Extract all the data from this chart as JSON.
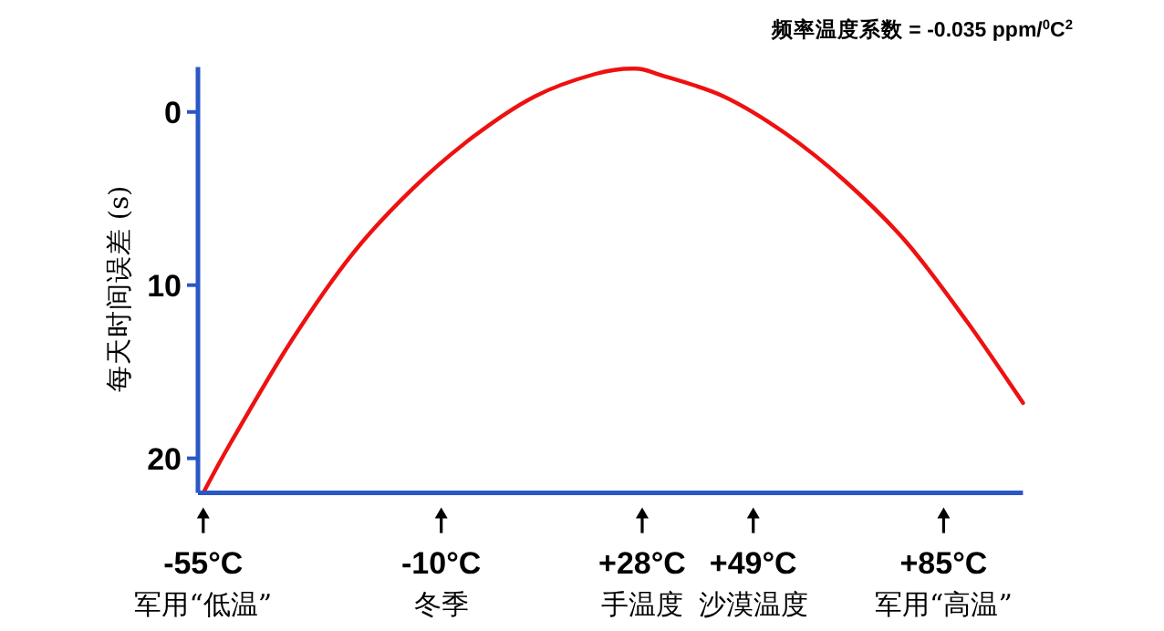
{
  "chart_data": {
    "type": "line",
    "title": "频率温度系数 = -0.035 ppm/$^{0}$C$^{2}$",
    "ylabel": "每天时间误差 (s)",
    "xlim": [
      -56,
      100
    ],
    "ylim": [
      22,
      -2.6
    ],
    "yticks": [
      0,
      10,
      20
    ],
    "xticks": [
      {
        "value": -55,
        "label": "-55°C"
      },
      {
        "value": -10,
        "label": "-10°C"
      },
      {
        "value": 28,
        "label": "+28°C"
      },
      {
        "value": 49,
        "label": "+49°C"
      },
      {
        "value": 85,
        "label": "+85°C"
      }
    ],
    "annotations": [
      "军用“低温”",
      "冬季",
      "手温度",
      "沙漠温度",
      "军用“高温”"
    ],
    "series": [
      {
        "color": "#ee1111",
        "x": [
          -55,
          -49.8,
          -38.3,
          -26.8,
          -15.3,
          -3.8,
          7.7,
          19.2,
          26.7,
          31.8,
          43.4,
          54.9,
          66.4,
          77.9,
          89.4,
          100
        ],
        "values": [
          22,
          19.1,
          13.2,
          8.2,
          4.4,
          1.4,
          -0.9,
          -2.2,
          -2.5,
          -2.1,
          -0.9,
          1.2,
          4.0,
          7.5,
          12.1,
          16.8
        ]
      }
    ]
  }
}
